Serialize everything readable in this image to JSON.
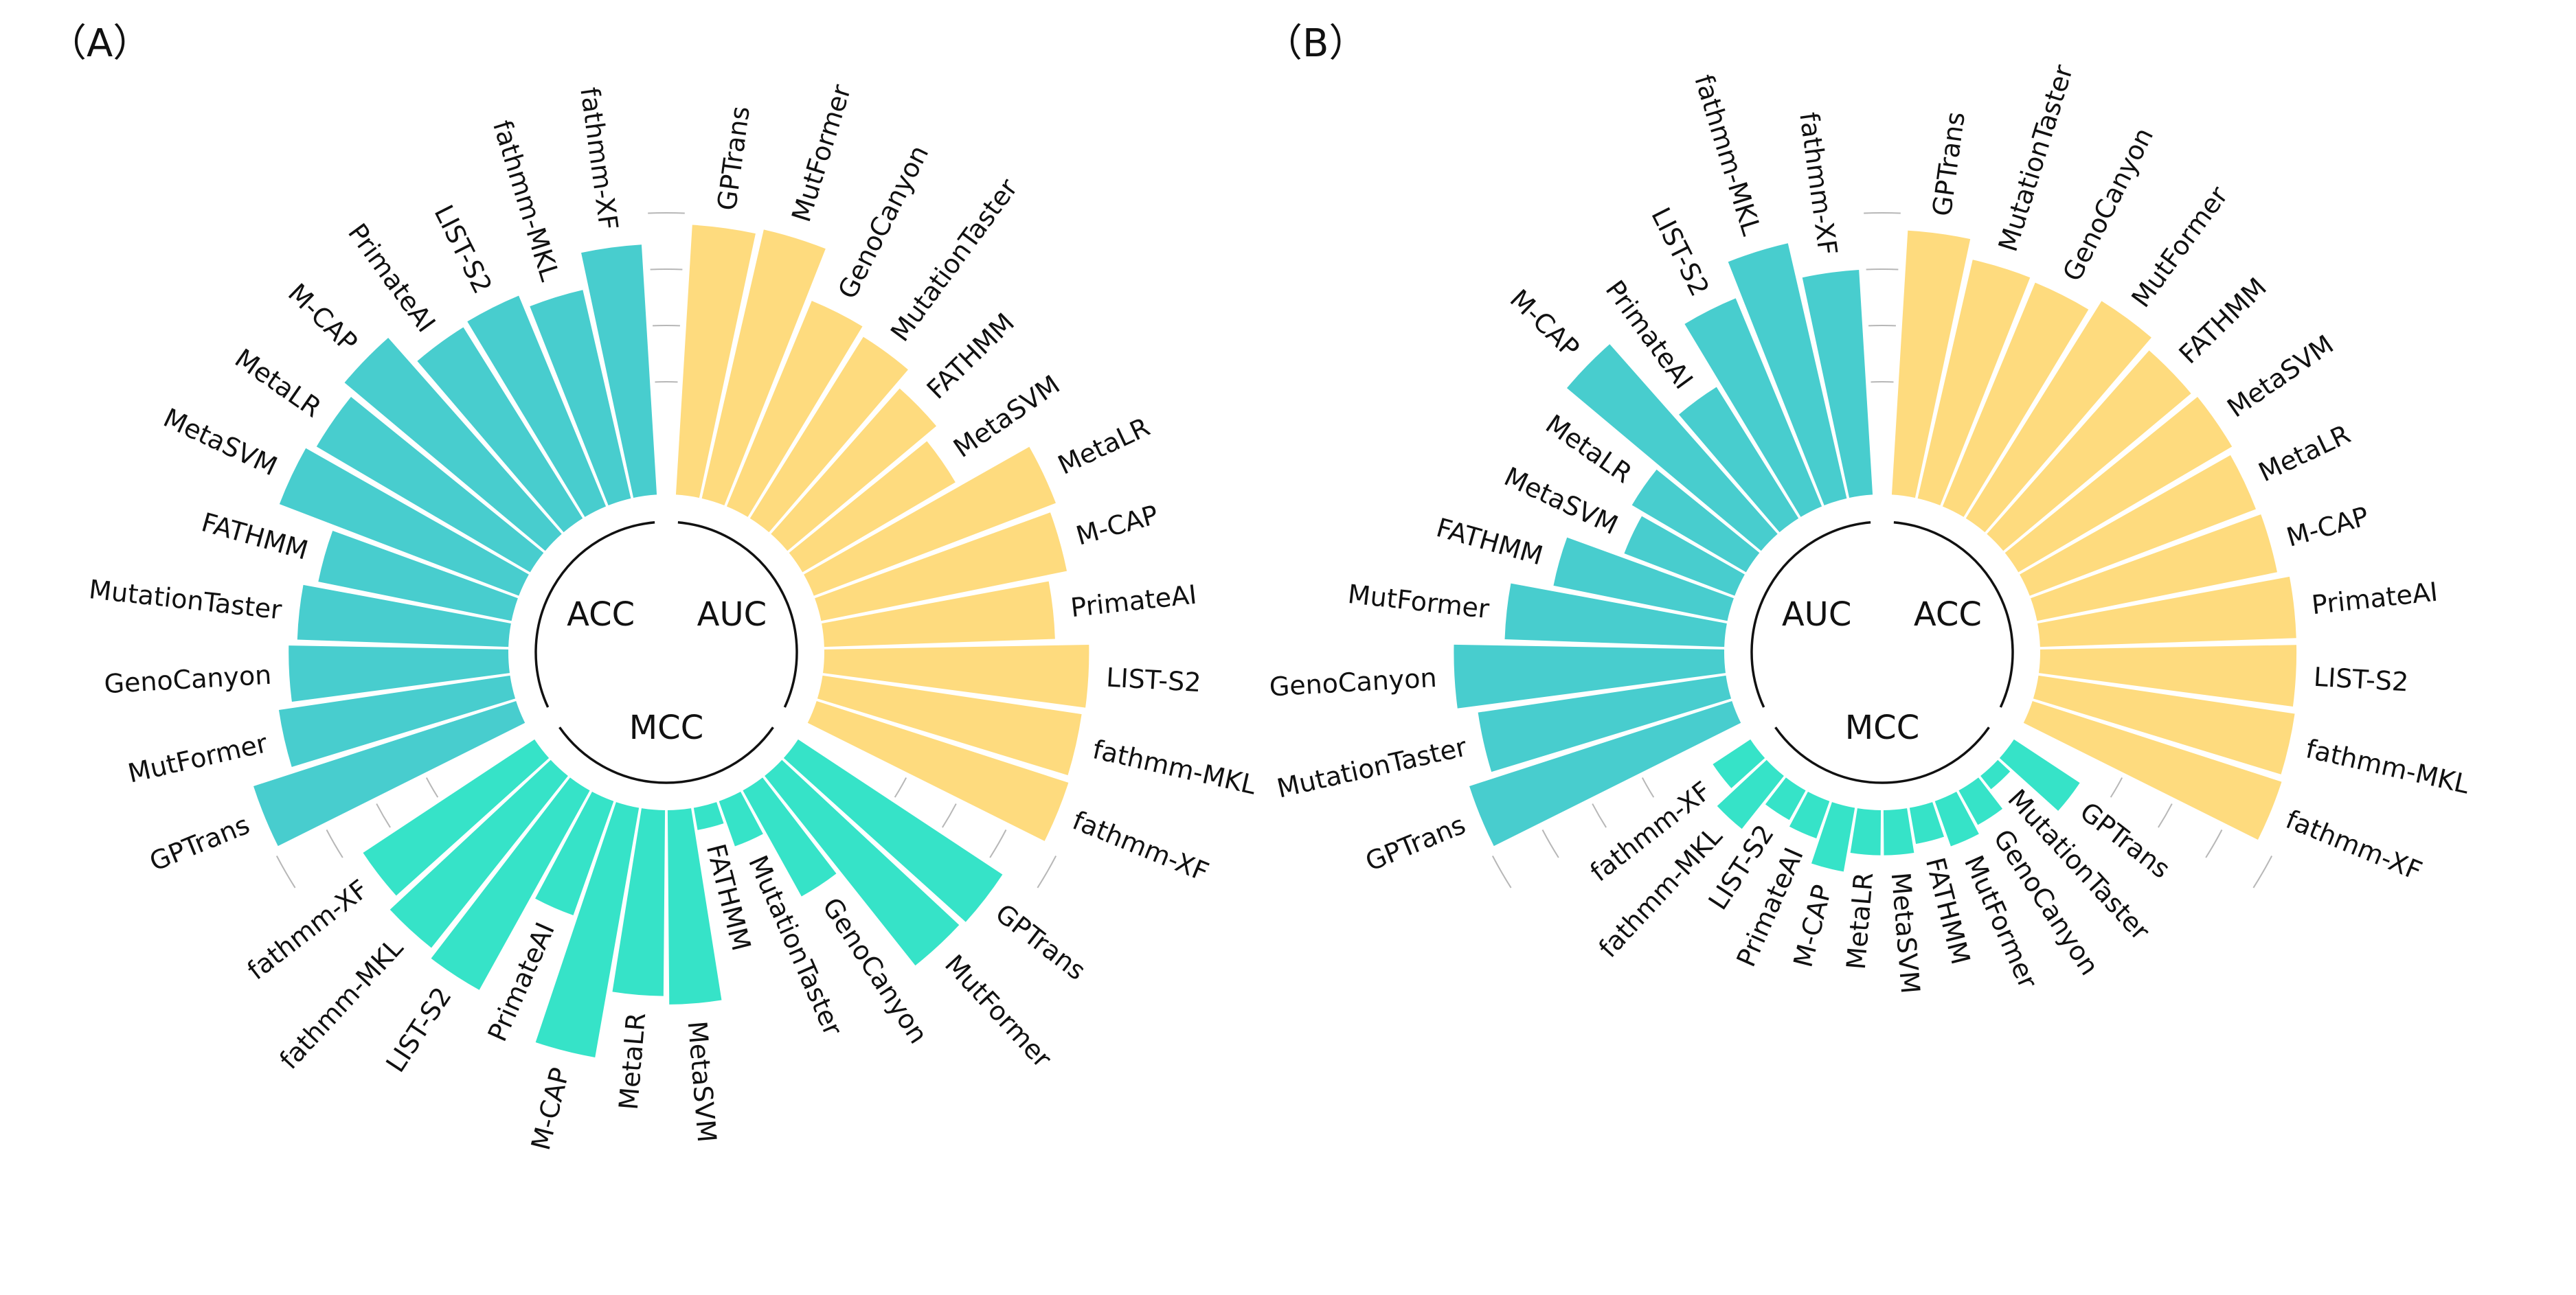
{
  "chart_data": [
    {
      "type": "radial-bar",
      "panel_label": "（A）",
      "rmax": 1.0,
      "ref_levels": [
        0.4,
        0.6,
        0.8,
        1.0
      ],
      "groups": [
        {
          "name": "AUC",
          "color": "#FEDB7E",
          "categories": [
            "GPTrans",
            "MutFormer",
            "GenoCanyon",
            "MutationTaster",
            "FATHMM",
            "MetaSVM",
            "MetaLR",
            "M-CAP",
            "PrimateAI",
            "LIST-S2",
            "fathmm-MKL",
            "fathmm-XF"
          ],
          "values": [
            0.96,
            0.98,
            0.79,
            0.76,
            0.69,
            0.63,
            0.92,
            0.89,
            0.82,
            0.94,
            0.93,
            0.94
          ]
        },
        {
          "name": "MCC",
          "color": "#36E3C8",
          "categories": [
            "GPTrans",
            "MutFormer",
            "GenoCanyon",
            "MutationTaster",
            "FATHMM",
            "MetaSVM",
            "MetaLR",
            "M-CAP",
            "PrimateAI",
            "LIST-S2",
            "fathmm-MKL",
            "fathmm-XF"
          ],
          "values": [
            0.87,
            0.86,
            0.43,
            0.17,
            0.08,
            0.69,
            0.66,
            0.9,
            0.43,
            0.81,
            0.78,
            0.73
          ]
        },
        {
          "name": "ACC",
          "color": "#48CDCE",
          "categories": [
            "GPTrans",
            "MutFormer",
            "GenoCanyon",
            "MutationTaster",
            "FATHMM",
            "MetaSVM",
            "MetaLR",
            "M-CAP",
            "PrimateAI",
            "LIST-S2",
            "fathmm-MKL",
            "fathmm-XF"
          ],
          "values": [
            0.98,
            0.83,
            0.78,
            0.75,
            0.7,
            0.91,
            0.88,
            0.93,
            0.8,
            0.81,
            0.76,
            0.89
          ]
        }
      ]
    },
    {
      "type": "radial-bar",
      "panel_label": "（B）",
      "rmax": 1.0,
      "ref_levels": [
        0.4,
        0.6,
        0.8,
        1.0
      ],
      "groups": [
        {
          "name": "ACC",
          "color": "#FEDB7E",
          "categories": [
            "GPTrans",
            "MutationTaster",
            "GenoCanyon",
            "MutFormer",
            "FATHMM",
            "MetaSVM",
            "MetaLR",
            "M-CAP",
            "PrimateAI",
            "LIST-S2",
            "fathmm-MKL",
            "fathmm-XF"
          ],
          "values": [
            0.94,
            0.87,
            0.86,
            0.91,
            0.87,
            0.88,
            0.86,
            0.87,
            0.91,
            0.91,
            0.92,
            0.93
          ]
        },
        {
          "name": "MCC",
          "color": "#36E3C8",
          "categories": [
            "GPTrans",
            "MutationTaster",
            "GenoCanyon",
            "MutFormer",
            "FATHMM",
            "MetaSVM",
            "MetaLR",
            "M-CAP",
            "PrimateAI",
            "LIST-S2",
            "fathmm-MKL",
            "fathmm-XF"
          ],
          "values": [
            0.28,
            0.06,
            0.14,
            0.17,
            0.13,
            0.16,
            0.16,
            0.23,
            0.14,
            0.12,
            0.24,
            0.16
          ]
        },
        {
          "name": "AUC",
          "color": "#48CDCE",
          "categories": [
            "GPTrans",
            "MutationTaster",
            "GenoCanyon",
            "MutFormer",
            "FATHMM",
            "MetaSVM",
            "MetaLR",
            "M-CAP",
            "PrimateAI",
            "LIST-S2",
            "fathmm-MKL",
            "fathmm-XF"
          ],
          "values": [
            0.98,
            0.89,
            0.96,
            0.78,
            0.63,
            0.42,
            0.47,
            0.9,
            0.55,
            0.8,
            0.93,
            0.8
          ]
        }
      ]
    }
  ]
}
